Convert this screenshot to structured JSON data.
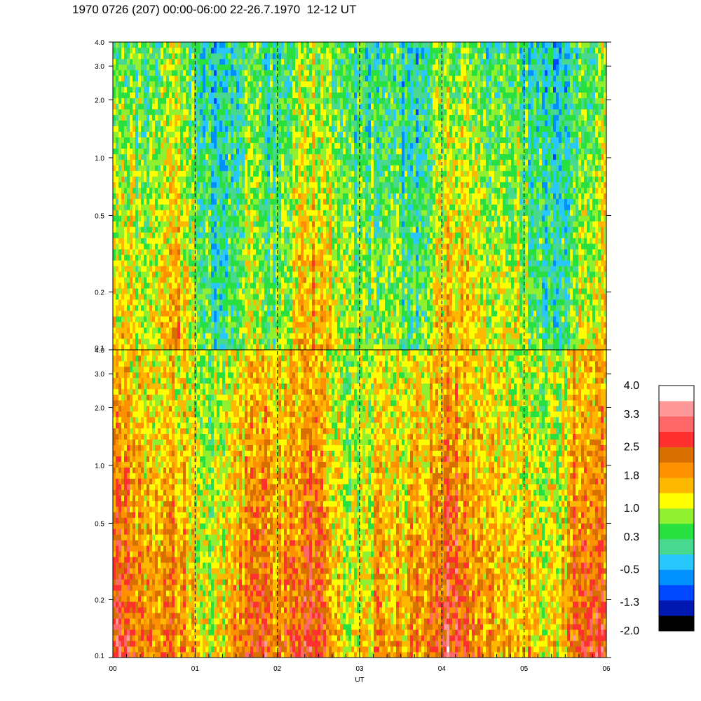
{
  "title": "1970 0726 (207) 00:00-06:00 22-26.7.1970  12-12 UT",
  "chart_data": {
    "type": "heatmap",
    "xlabel": "UT",
    "x_ticks": [
      "00",
      "01",
      "02",
      "03",
      "04",
      "05",
      "06"
    ],
    "x_range": [
      0,
      6
    ],
    "x_minor_per_hour": 6,
    "hour_markers": [
      1,
      2,
      3,
      4,
      5
    ],
    "y_scale": "log",
    "panels": [
      {
        "name": "upper",
        "ylim": [
          0.1,
          4.0
        ],
        "y_ticks": [
          {
            "value": 4.0,
            "label": "4.0"
          },
          {
            "value": 3.0,
            "label": "3.0"
          },
          {
            "value": 2.0,
            "label": "2.0"
          },
          {
            "value": 1.0,
            "label": "1.0"
          },
          {
            "value": 0.5,
            "label": "0.5"
          },
          {
            "value": 0.2,
            "label": "0.2"
          },
          {
            "value": 0.1,
            "label": "0.1"
          }
        ],
        "typical_level_low_freq": 1.0,
        "typical_level_high_freq": 0.3
      },
      {
        "name": "lower",
        "ylim": [
          0.1,
          4.0
        ],
        "y_ticks": [
          {
            "value": 4.0,
            "label": "4.0"
          },
          {
            "value": 3.0,
            "label": "3.0"
          },
          {
            "value": 2.0,
            "label": "2.0"
          },
          {
            "value": 1.0,
            "label": "1.0"
          },
          {
            "value": 0.5,
            "label": "0.5"
          },
          {
            "value": 0.2,
            "label": "0.2"
          },
          {
            "value": 0.1,
            "label": "0.1"
          }
        ],
        "typical_level_low_freq": 2.0,
        "typical_level_high_freq": 1.2
      }
    ],
    "colorbar": {
      "min": -2.0,
      "max": 4.0,
      "labels": [
        "4.0",
        "3.3",
        "2.5",
        "1.8",
        "1.0",
        "0.3",
        "-0.5",
        "-1.3",
        "-2.0"
      ],
      "colors": [
        "#000000",
        "#0018b0",
        "#0048ff",
        "#0090ff",
        "#28c8ff",
        "#48d890",
        "#28e040",
        "#90f030",
        "#ffff00",
        "#ffb800",
        "#ff9000",
        "#d87000",
        "#ff3030",
        "#ff6868",
        "#ff9898",
        "#ffffff"
      ]
    }
  }
}
